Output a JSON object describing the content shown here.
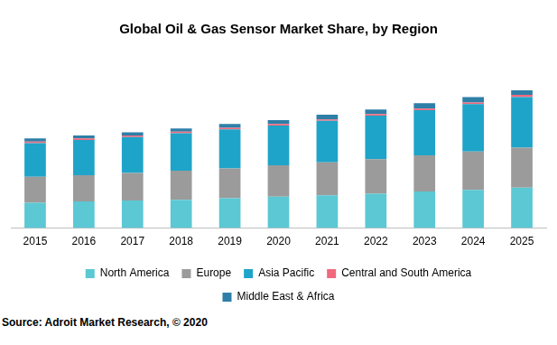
{
  "chart_data": {
    "type": "bar",
    "title": "Global Oil & Gas Sensor Market Share, by Region",
    "source": "Source: Adroit Market Research, © 2020",
    "categories": [
      "2015",
      "2016",
      "2017",
      "2018",
      "2019",
      "2020",
      "2021",
      "2022",
      "2023",
      "2024",
      "2025"
    ],
    "series": [
      {
        "name": "North America",
        "color": "#5bc8d4",
        "values": [
          33,
          35,
          36,
          37,
          39,
          41,
          43,
          45,
          48,
          50,
          53
        ]
      },
      {
        "name": "Europe",
        "color": "#9b9b9b",
        "values": [
          34,
          34,
          36,
          38,
          39,
          41,
          43,
          45,
          47,
          50,
          52
        ]
      },
      {
        "name": "Asia Pacific",
        "color": "#1ea4c9",
        "values": [
          44,
          46,
          47,
          49,
          51,
          52,
          54,
          57,
          59,
          62,
          66
        ]
      },
      {
        "name": "Central and South America",
        "color": "#f0697d",
        "values": [
          2,
          2,
          2,
          2,
          2,
          2,
          2,
          2,
          2,
          2,
          3
        ]
      },
      {
        "name": "Middle East & Africa",
        "color": "#2e7fa8",
        "values": [
          4,
          4,
          4,
          4,
          5,
          5,
          6,
          6,
          7,
          7,
          6
        ]
      }
    ],
    "ylim": [
      0,
      220
    ],
    "stacked": true,
    "grid": false,
    "legend": "bottom",
    "tick_labels": "x"
  }
}
